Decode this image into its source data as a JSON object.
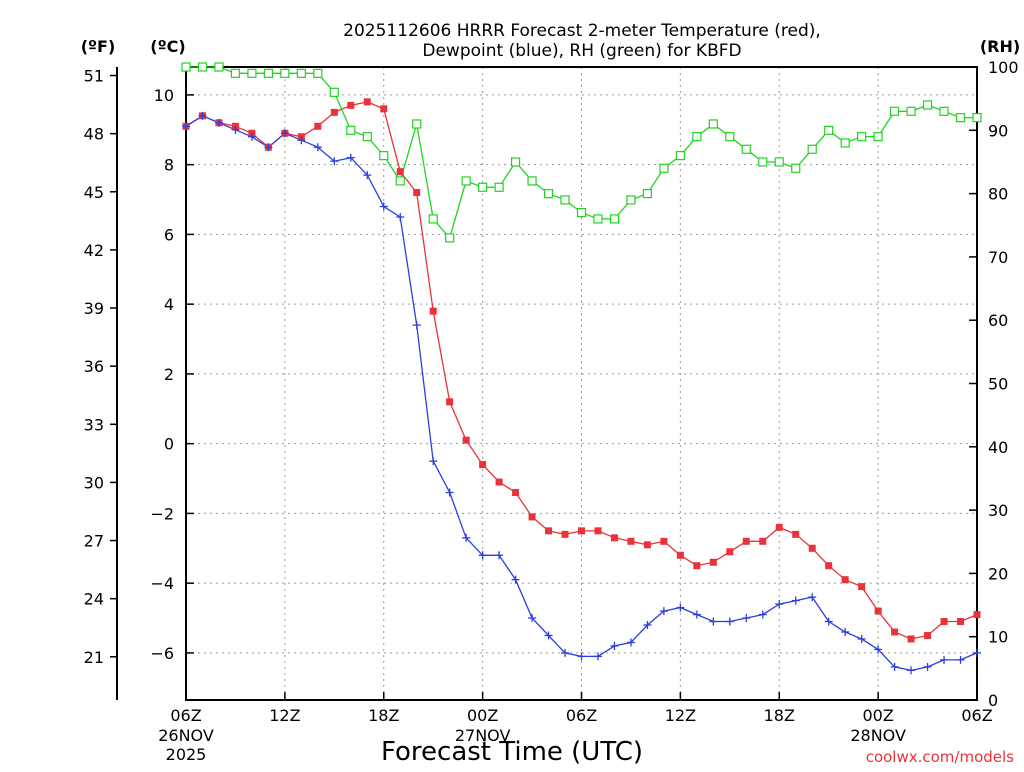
{
  "chart_data": {
    "type": "line",
    "title_line1": "2025112606 HRRR Forecast 2-meter Temperature (red),",
    "title_line2": "Dewpoint (blue), RH (green) for KBFD",
    "xlabel": "Forecast Time (UTC)",
    "credit": "coolwx.com/models",
    "unit_labels": {
      "fahrenheit": "(ºF)",
      "celsius": "(ºC)",
      "rh": "(RH)"
    },
    "x_range_hours": [
      0,
      48
    ],
    "x_ticks": [
      {
        "hour": 0,
        "label": "06Z",
        "date": "26NOV",
        "year": "2025"
      },
      {
        "hour": 6,
        "label": "12Z",
        "date": "",
        "year": ""
      },
      {
        "hour": 12,
        "label": "18Z",
        "date": "",
        "year": ""
      },
      {
        "hour": 18,
        "label": "00Z",
        "date": "27NOV",
        "year": ""
      },
      {
        "hour": 24,
        "label": "06Z",
        "date": "",
        "year": ""
      },
      {
        "hour": 30,
        "label": "12Z",
        "date": "",
        "year": ""
      },
      {
        "hour": 36,
        "label": "18Z",
        "date": "",
        "year": ""
      },
      {
        "hour": 42,
        "label": "00Z",
        "date": "28NOV",
        "year": ""
      },
      {
        "hour": 48,
        "label": "06Z",
        "date": "",
        "year": ""
      }
    ],
    "celsius_axis": {
      "range": [
        -7.35,
        10.8
      ],
      "ticks": [
        10,
        8,
        6,
        4,
        2,
        0,
        -2,
        -4,
        -6
      ]
    },
    "fahrenheit_axis": {
      "ticks": [
        51,
        48,
        45,
        42,
        39,
        36,
        33,
        30,
        27,
        24,
        21
      ]
    },
    "rh_axis": {
      "range": [
        0,
        100
      ],
      "ticks": [
        100,
        90,
        80,
        70,
        60,
        50,
        40,
        30,
        20,
        10,
        0
      ]
    },
    "hours": [
      0,
      1,
      2,
      3,
      4,
      5,
      6,
      7,
      8,
      9,
      10,
      11,
      12,
      13,
      14,
      15,
      16,
      17,
      18,
      19,
      20,
      21,
      22,
      23,
      24,
      25,
      26,
      27,
      28,
      29,
      30,
      31,
      32,
      33,
      34,
      35,
      36,
      37,
      38,
      39,
      40,
      41,
      42,
      43,
      44,
      45,
      46,
      47,
      48
    ],
    "series": [
      {
        "name": "2-meter Temperature",
        "unit": "C",
        "color": "#e8333a",
        "marker": "filled-square",
        "values": [
          9.1,
          9.4,
          9.2,
          9.1,
          8.9,
          8.5,
          8.9,
          8.8,
          9.1,
          9.5,
          9.7,
          9.8,
          9.6,
          7.8,
          7.2,
          3.8,
          1.2,
          0.1,
          -0.6,
          -1.1,
          -1.4,
          -2.1,
          -2.5,
          -2.6,
          -2.5,
          -2.5,
          -2.7,
          -2.8,
          -2.9,
          -2.8,
          -3.2,
          -3.5,
          -3.4,
          -3.1,
          -2.8,
          -2.8,
          -2.4,
          -2.6,
          -3.0,
          -3.5,
          -3.9,
          -4.1,
          -4.8,
          -5.4,
          -5.6,
          -5.5,
          -5.1,
          -5.1,
          -4.9
        ]
      },
      {
        "name": "Dewpoint",
        "unit": "C",
        "color": "#2b3fe0",
        "marker": "plus",
        "values": [
          9.1,
          9.4,
          9.2,
          9.0,
          8.8,
          8.5,
          8.9,
          8.7,
          8.5,
          8.1,
          8.2,
          7.7,
          6.8,
          6.5,
          3.4,
          -0.5,
          -1.4,
          -2.7,
          -3.2,
          -3.2,
          -3.9,
          -5.0,
          -5.5,
          -6.0,
          -6.1,
          -6.1,
          -5.8,
          -5.7,
          -5.2,
          -4.8,
          -4.7,
          -4.9,
          -5.1,
          -5.1,
          -5.0,
          -4.9,
          -4.6,
          -4.5,
          -4.4,
          -5.1,
          -5.4,
          -5.6,
          -5.9,
          -6.4,
          -6.5,
          -6.4,
          -6.2,
          -6.2,
          -6.0
        ]
      },
      {
        "name": "RH",
        "unit": "%",
        "color": "#22d322",
        "marker": "open-square",
        "values": [
          100,
          100,
          100,
          99,
          99,
          99,
          99,
          99,
          99,
          96,
          90,
          89,
          86,
          82,
          91,
          76,
          73,
          82,
          81,
          81,
          85,
          82,
          80,
          79,
          77,
          76,
          76,
          79,
          80,
          84,
          86,
          89,
          91,
          89,
          87,
          85,
          85,
          84,
          87,
          90,
          88,
          89,
          89,
          93,
          93,
          94,
          93,
          92,
          92
        ]
      }
    ]
  }
}
